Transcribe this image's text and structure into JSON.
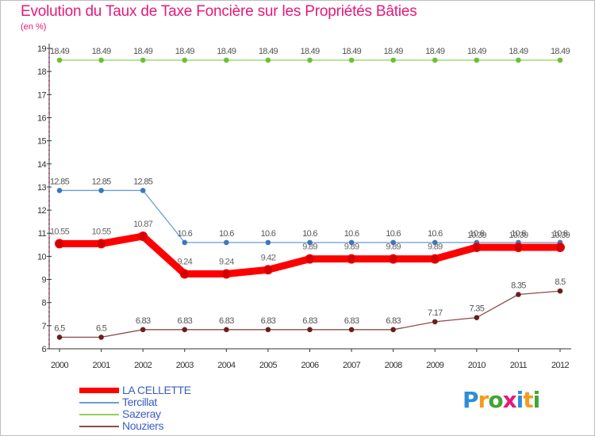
{
  "title": "Evolution du Taux de Taxe Foncière sur les Propriétés Bâties",
  "unit_label": "(en %)",
  "logo": {
    "text": "Proxiti",
    "colors": [
      "#2a8fd6",
      "#f59a1b",
      "#3fa535",
      "#e6197a",
      "#2a8fd6",
      "#f59a1b",
      "#3fa535"
    ]
  },
  "chart_data": {
    "type": "line",
    "title": "Evolution du Taux de Taxe Foncière sur les Propriétés Bâties",
    "ylabel": "(en %)",
    "xlabel": "",
    "categories": [
      "2000",
      "2001",
      "2002",
      "2003",
      "2004",
      "2005",
      "2006",
      "2007",
      "2008",
      "2009",
      "2010",
      "2011",
      "2012"
    ],
    "ylim": [
      6,
      19
    ],
    "yticks": [
      "6",
      "7",
      "8",
      "9",
      "10",
      "11",
      "12",
      "13",
      "14",
      "15",
      "16",
      "17",
      "18",
      "19"
    ],
    "grid": false,
    "legend": "bottom-left",
    "series": [
      {
        "name": "LA CELLETTE",
        "color": "#ff0000",
        "marker": "#d40000",
        "emphasis": true,
        "values": [
          10.55,
          10.55,
          10.87,
          9.24,
          9.24,
          9.42,
          9.89,
          9.89,
          9.89,
          9.89,
          10.39,
          10.39,
          10.39
        ],
        "labels": [
          "10.55",
          "10.55",
          "10.87",
          "9.24",
          "9.24",
          "9.42",
          "9.89",
          "9.89",
          "9.89",
          "9.89",
          "10.39",
          "10.39",
          "10.39"
        ]
      },
      {
        "name": "Tercillat",
        "color": "#6a9ed2",
        "marker": "#3b78be",
        "values": [
          12.85,
          12.85,
          12.85,
          10.6,
          10.6,
          10.6,
          10.6,
          10.6,
          10.6,
          10.6,
          10.6,
          10.6,
          10.6
        ],
        "labels": [
          "12.85",
          "12.85",
          "12.85",
          "10.6",
          "10.6",
          "10.6",
          "10.6",
          "10.6",
          "10.6",
          "10.6",
          "10.6",
          "10.6",
          "10.6"
        ]
      },
      {
        "name": "Sazeray",
        "color": "#8fd15a",
        "marker": "#6cc033",
        "values": [
          18.49,
          18.49,
          18.49,
          18.49,
          18.49,
          18.49,
          18.49,
          18.49,
          18.49,
          18.49,
          18.49,
          18.49,
          18.49
        ],
        "labels": [
          "18.49",
          "18.49",
          "18.49",
          "18.49",
          "18.49",
          "18.49",
          "18.49",
          "18.49",
          "18.49",
          "18.49",
          "18.49",
          "18.49",
          "18.49"
        ]
      },
      {
        "name": "Nouziers",
        "color": "#8c4b4b",
        "marker": "#6b1f1f",
        "values": [
          6.5,
          6.5,
          6.83,
          6.83,
          6.83,
          6.83,
          6.83,
          6.83,
          6.83,
          7.17,
          7.35,
          8.35,
          8.5
        ],
        "labels": [
          "6.5",
          "6.5",
          "6.83",
          "6.83",
          "6.83",
          "6.83",
          "6.83",
          "6.83",
          "6.83",
          "7.17",
          "7.35",
          "8.35",
          "8.5"
        ]
      }
    ]
  }
}
